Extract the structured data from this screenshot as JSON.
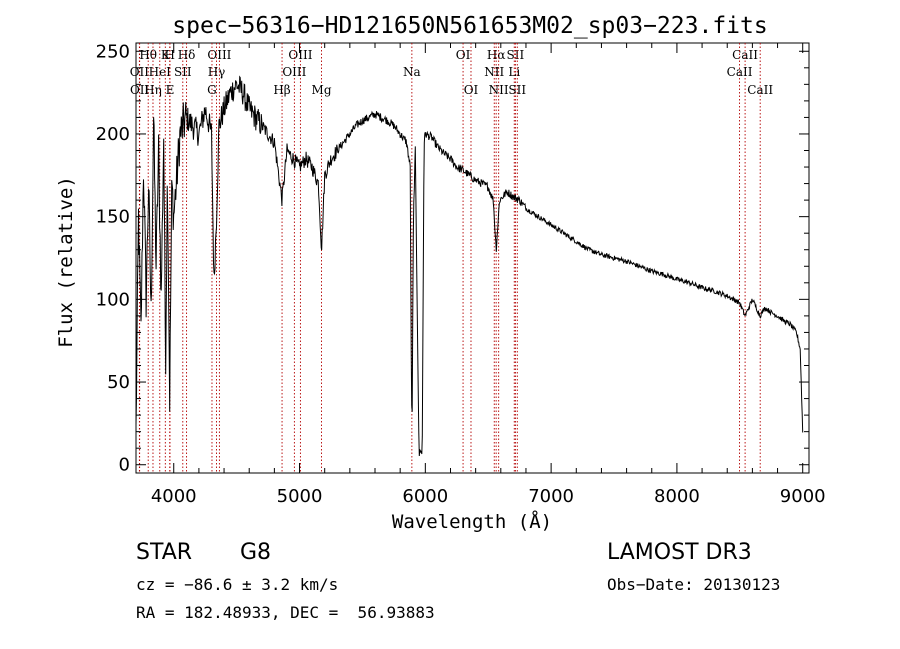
{
  "chart_data": {
    "type": "line",
    "title": "spec−56316−HD121650N561653M02_sp03−223.fits",
    "xlabel": "Wavelength (Å)",
    "ylabel": "Flux (relative)",
    "xlim": [
      3700,
      9050
    ],
    "ylim": [
      -5,
      255
    ],
    "xticks": [
      4000,
      5000,
      6000,
      7000,
      8000,
      9000
    ],
    "yticks": [
      0,
      50,
      100,
      150,
      200,
      250
    ],
    "line_color": "#000000",
    "marker_color": "#b30000",
    "series": [
      {
        "name": "flux",
        "x": [
          3700,
          3720,
          3740,
          3760,
          3780,
          3800,
          3820,
          3840,
          3860,
          3880,
          3900,
          3920,
          3935,
          3950,
          3968,
          3985,
          4000,
          4050,
          4100,
          4150,
          4200,
          4250,
          4300,
          4320,
          4340,
          4360,
          4400,
          4450,
          4500,
          4550,
          4600,
          4650,
          4700,
          4750,
          4800,
          4861,
          4900,
          4950,
          5000,
          5050,
          5100,
          5150,
          5175,
          5200,
          5250,
          5300,
          5350,
          5400,
          5450,
          5500,
          5550,
          5600,
          5650,
          5700,
          5750,
          5800,
          5850,
          5880,
          5890,
          5896,
          5905,
          5920,
          5950,
          5960,
          5975,
          5990,
          6000,
          6050,
          6100,
          6150,
          6200,
          6250,
          6300,
          6350,
          6400,
          6450,
          6500,
          6540,
          6563,
          6590,
          6650,
          6700,
          6750,
          6800,
          6900,
          7000,
          7100,
          7200,
          7300,
          7400,
          7500,
          7600,
          7700,
          7800,
          7900,
          8000,
          8100,
          8200,
          8300,
          8400,
          8498,
          8542,
          8600,
          8662,
          8700,
          8750,
          8800,
          8850,
          8900,
          8950,
          8980,
          9000
        ],
        "y": [
          20,
          150,
          80,
          180,
          100,
          170,
          90,
          210,
          120,
          190,
          100,
          200,
          60,
          180,
          40,
          170,
          150,
          200,
          210,
          205,
          200,
          215,
          200,
          110,
          150,
          205,
          215,
          225,
          230,
          225,
          215,
          210,
          205,
          200,
          195,
          160,
          190,
          185,
          180,
          185,
          180,
          170,
          130,
          175,
          185,
          190,
          195,
          200,
          205,
          208,
          210,
          212,
          210,
          208,
          205,
          200,
          195,
          180,
          40,
          30,
          150,
          190,
          5,
          10,
          5,
          195,
          200,
          198,
          192,
          188,
          185,
          180,
          178,
          175,
          172,
          170,
          168,
          160,
          130,
          160,
          165,
          162,
          160,
          155,
          150,
          145,
          140,
          135,
          130,
          127,
          125,
          123,
          120,
          117,
          115,
          112,
          110,
          107,
          105,
          102,
          98,
          90,
          100,
          90,
          95,
          92,
          90,
          87,
          85,
          80,
          70,
          20
        ]
      }
    ],
    "spectral_lines": [
      {
        "name": "Hθ",
        "x": 3797,
        "row": 0
      },
      {
        "name": "OII",
        "x": 3727,
        "row": 1
      },
      {
        "name": "OII",
        "x": 3729,
        "row": 2
      },
      {
        "name": "Hη",
        "x": 3835,
        "row": 2
      },
      {
        "name": "HeI",
        "x": 3889,
        "row": 1
      },
      {
        "name": "K",
        "x": 3933,
        "row": 0
      },
      {
        "name": "H",
        "x": 3968,
        "row": 0
      },
      {
        "name": "E",
        "x": 3970,
        "row": 2
      },
      {
        "name": "Hδ",
        "x": 4102,
        "row": 0
      },
      {
        "name": "SII",
        "x": 4072,
        "row": 1
      },
      {
        "name": "OIII",
        "x": 4363,
        "row": 0
      },
      {
        "name": "Hγ",
        "x": 4340,
        "row": 1
      },
      {
        "name": "G",
        "x": 4304,
        "row": 2
      },
      {
        "name": "OIII",
        "x": 5007,
        "row": 0
      },
      {
        "name": "OIII",
        "x": 4959,
        "row": 1
      },
      {
        "name": "Hβ",
        "x": 4861,
        "row": 2
      },
      {
        "name": "Mg",
        "x": 5175,
        "row": 2
      },
      {
        "name": "Na",
        "x": 5893,
        "row": 1
      },
      {
        "name": "OI",
        "x": 6300,
        "row": 0
      },
      {
        "name": "OI",
        "x": 6363,
        "row": 2
      },
      {
        "name": "Hα",
        "x": 6563,
        "row": 0
      },
      {
        "name": "SII",
        "x": 6716,
        "row": 0
      },
      {
        "name": "NII",
        "x": 6548,
        "row": 1
      },
      {
        "name": "Li",
        "x": 6707,
        "row": 1
      },
      {
        "name": "NII",
        "x": 6583,
        "row": 2
      },
      {
        "name": "SII",
        "x": 6731,
        "row": 2
      },
      {
        "name": "CaII",
        "x": 8542,
        "row": 0
      },
      {
        "name": "CaII",
        "x": 8498,
        "row": 1
      },
      {
        "name": "CaII",
        "x": 8662,
        "row": 2
      }
    ]
  },
  "info": {
    "object_class": "STAR",
    "subclass": "G8",
    "survey": "LAMOST DR3",
    "redshift": "cz = −86.6 ± 3.2 km/s",
    "obs_date": "Obs−Date: 20130123",
    "coords": "RA = 182.48933, DEC =  56.93883"
  }
}
